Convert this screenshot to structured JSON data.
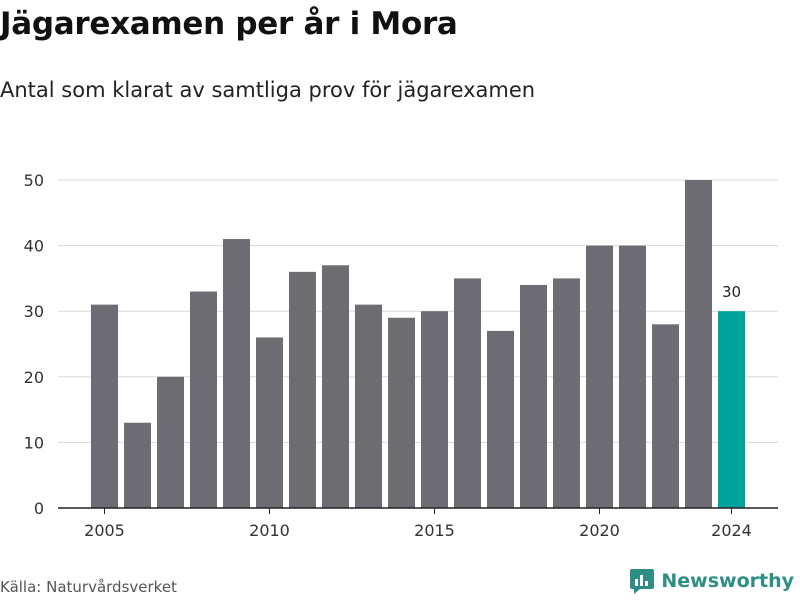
{
  "header": {
    "title": "Jägarexamen per år i Mora",
    "subtitle": "Antal som klarat av samtliga prov för jägarexamen"
  },
  "footer": {
    "source": "Källa: Naturvårdsverket",
    "brand": "Newsworthy"
  },
  "colors": {
    "bar": "#6d6c72",
    "highlight": "#00a39a",
    "brand": "#2e8e85",
    "grid": "#d9d9d9"
  },
  "chart_data": {
    "type": "bar",
    "x": [
      2005,
      2006,
      2007,
      2008,
      2009,
      2010,
      2011,
      2012,
      2013,
      2014,
      2015,
      2016,
      2017,
      2018,
      2019,
      2020,
      2021,
      2022,
      2023,
      2024
    ],
    "values": [
      31,
      13,
      20,
      33,
      41,
      26,
      36,
      37,
      31,
      29,
      30,
      35,
      27,
      34,
      35,
      40,
      40,
      28,
      50,
      30
    ],
    "highlight_index": 19,
    "highlight_label": "30",
    "xticks": [
      "2005",
      "2010",
      "2015",
      "2020",
      "2024"
    ],
    "yticks": [
      "0",
      "10",
      "20",
      "30",
      "40",
      "50"
    ],
    "ylim": [
      0,
      50
    ],
    "grid": true
  }
}
